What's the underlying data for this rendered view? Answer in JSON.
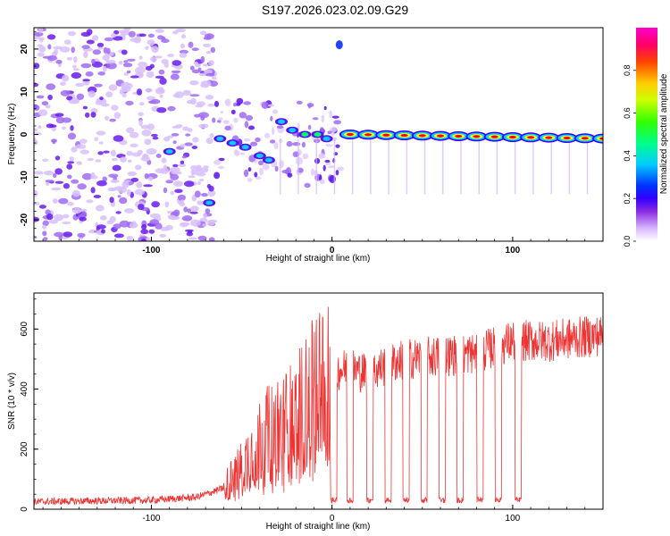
{
  "title": "S197.2026.023.02.09.G29",
  "chart_data": [
    {
      "type": "heatmap",
      "xlabel": "Height of straight line (km)",
      "ylabel": "Frequency (Hz)",
      "xlim": [
        -165,
        150
      ],
      "ylim": [
        -25,
        25
      ],
      "xticks": [
        -100,
        0,
        100
      ],
      "yticks": [
        -20,
        -10,
        0,
        10,
        20
      ],
      "colorbar": {
        "label": "Normalized spectral amplitude",
        "range": [
          0.0,
          1.0
        ],
        "ticks": [
          0.0,
          0.2,
          0.4,
          0.6,
          0.8
        ],
        "tick_labels": [
          "0.0",
          "0.2",
          "0.4",
          "0.6",
          "0.8"
        ],
        "colors": [
          "#ffffff",
          "#d8b8ff",
          "#8a2be2",
          "#5a00ff",
          "#0000ff",
          "#00ccff",
          "#00ff66",
          "#66ff00",
          "#ffff00",
          "#ff8800",
          "#ff0000",
          "#ff00cc"
        ]
      },
      "features": {
        "noise_region_km": [
          -165,
          -65
        ],
        "line_track_km": [
          5,
          150
        ],
        "line_freq_hz": [
          0,
          -1
        ],
        "peak_amplitude": 1.0,
        "isolated_blob": {
          "x": 4,
          "y": 21
        }
      }
    },
    {
      "type": "line",
      "xlabel": "Height of straight line (km)",
      "ylabel": "SNR (10 * v/v)",
      "xlim": [
        -165,
        150
      ],
      "ylim": [
        0,
        720
      ],
      "xticks": [
        -100,
        0,
        100
      ],
      "yticks": [
        0,
        200,
        400,
        600
      ],
      "color": "#ee3333",
      "series_envelope": {
        "x": [
          -165,
          -100,
          -75,
          -60,
          -50,
          -40,
          -30,
          -20,
          -10,
          0,
          10,
          20,
          30,
          40,
          60,
          80,
          100,
          120,
          150
        ],
        "y": [
          25,
          30,
          40,
          70,
          140,
          230,
          260,
          300,
          380,
          460,
          470,
          450,
          480,
          500,
          510,
          520,
          560,
          560,
          580
        ]
      },
      "dropouts_km": [
        1,
        10,
        21,
        31,
        41,
        51,
        61,
        71,
        82,
        92,
        103
      ],
      "dropout_level": 30
    }
  ]
}
